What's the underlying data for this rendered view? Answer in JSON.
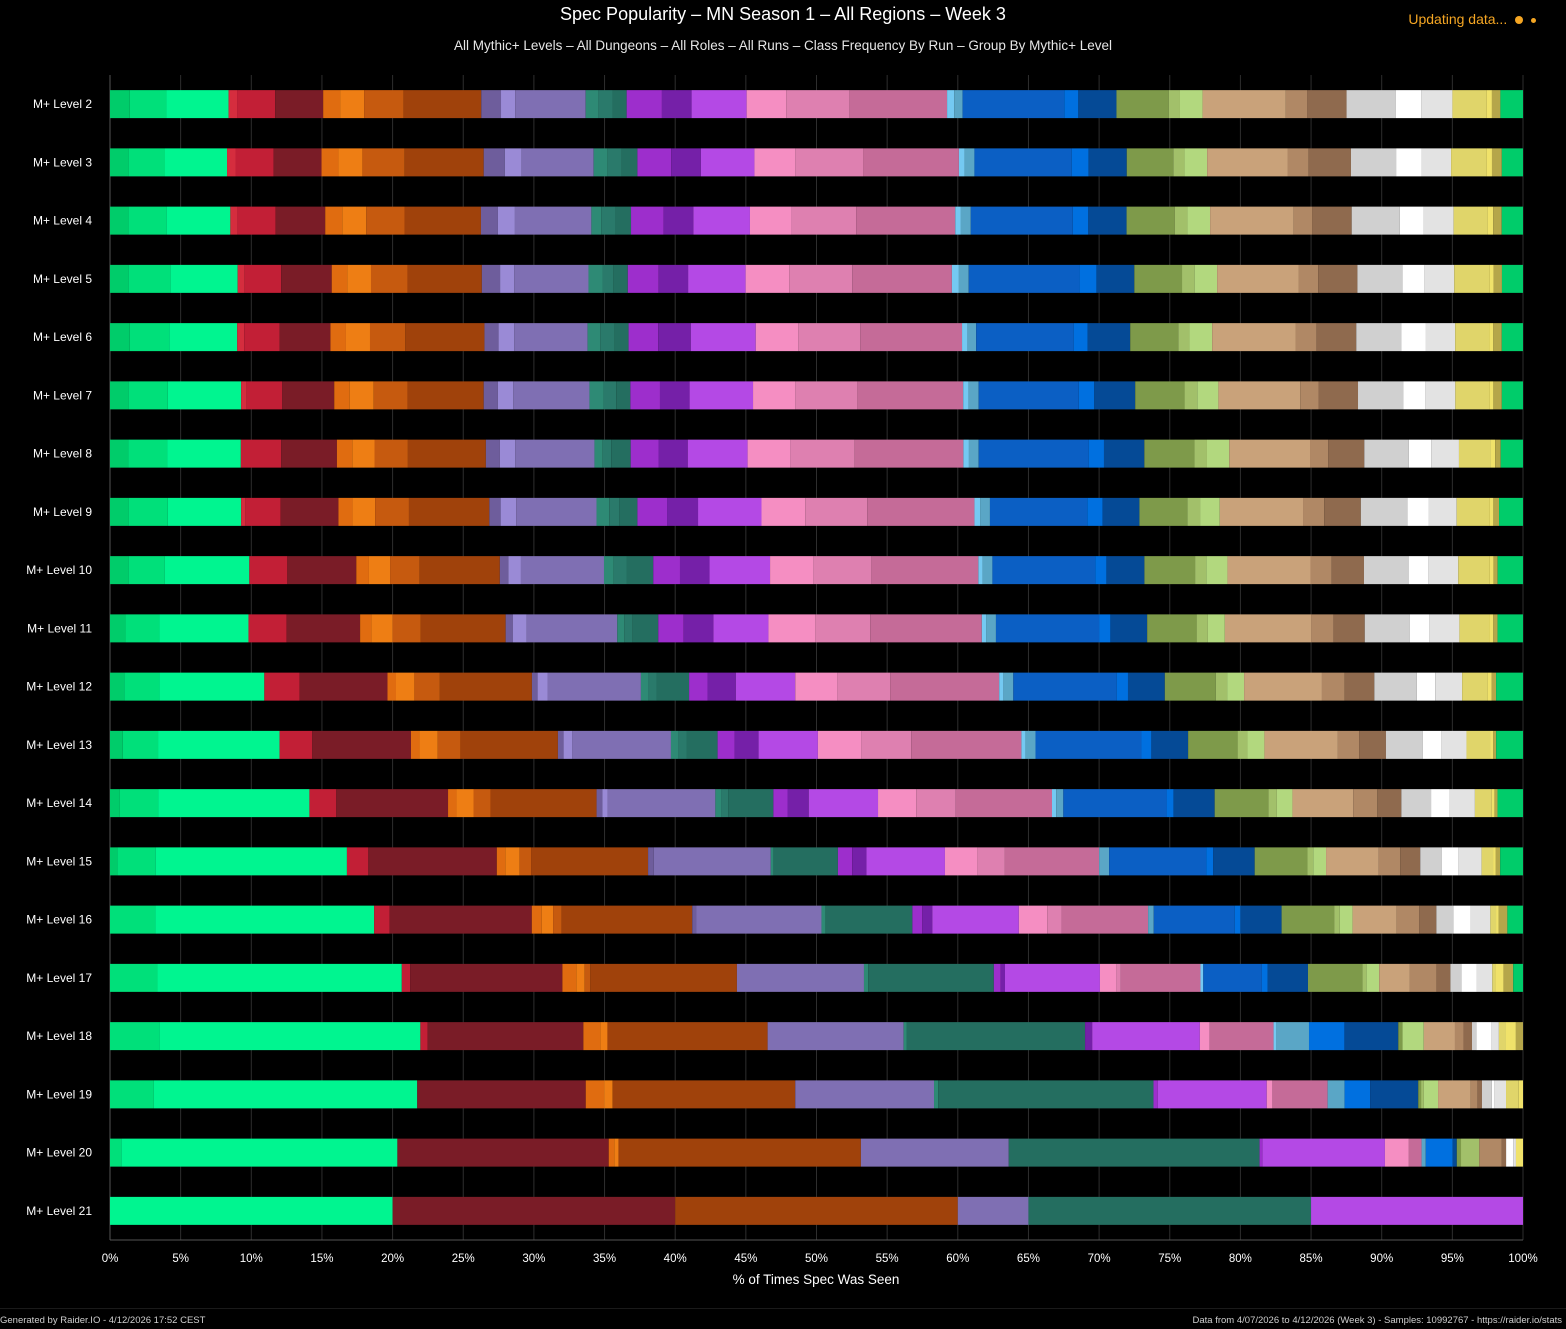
{
  "header": {
    "title": "Spec Popularity – MN Season 1 – All Regions – Week 3",
    "subtitle": "All Mythic+ Levels – All Dungeons – All Roles – All Runs – Class Frequency By Run – Group By Mythic+ Level",
    "status": "Updating data..."
  },
  "footer": {
    "left": "Generated by Raider.IO - 4/12/2026 17:52 CEST",
    "right": "Data from 4/07/2026 to 4/12/2026 (Week 3) - Samples: 10992767 - https://raider.io/stats"
  },
  "colors": {
    "status": "#f5a623",
    "background": "#000000",
    "gridline": "#2e2e2e"
  },
  "chart_data": {
    "type": "bar",
    "orientation": "horizontal",
    "stacked": true,
    "xlabel": "% of Times Spec Was Seen",
    "xlim": [
      0,
      100
    ],
    "xticks": [
      "0%",
      "5%",
      "10%",
      "15%",
      "20%",
      "25%",
      "30%",
      "35%",
      "40%",
      "45%",
      "50%",
      "55%",
      "60%",
      "65%",
      "70%",
      "75%",
      "80%",
      "85%",
      "90%",
      "95%",
      "100%"
    ],
    "grid": true,
    "legend": "none",
    "categories": [
      "M+ Level 2",
      "M+ Level 3",
      "M+ Level 4",
      "M+ Level 5",
      "M+ Level 6",
      "M+ Level 7",
      "M+ Level 8",
      "M+ Level 9",
      "M+ Level 10",
      "M+ Level 11",
      "M+ Level 12",
      "M+ Level 13",
      "M+ Level 14",
      "M+ Level 15",
      "M+ Level 16",
      "M+ Level 17",
      "M+ Level 18",
      "M+ Level 19",
      "M+ Level 20",
      "M+ Level 21"
    ],
    "series_colors": [
      "#00cc6a",
      "#00e07a",
      "#00f590",
      "#d52d3e",
      "#c21f36",
      "#7a1c27",
      "#e06c10",
      "#ee7e14",
      "#c65a0f",
      "#a0420b",
      "#6e5d9c",
      "#9a8ad6",
      "#7f6fb3",
      "#2e8a75",
      "#2a7a6b",
      "#246e60",
      "#9d2ecc",
      "#7520a8",
      "#b449e5",
      "#f58ec2",
      "#de80b0",
      "#c56b98",
      "#74c9f2",
      "#5aa6c6",
      "#0b5fc4",
      "#0070e0",
      "#054a96",
      "#7e9a4a",
      "#a2c06a",
      "#b2d87e",
      "#c9a27a",
      "#b08865",
      "#8f6a4e",
      "#d0d0d0",
      "#ffffff",
      "#e3e3e3",
      "#e0d56a",
      "#f0e26a",
      "#b5a64a"
    ],
    "values": [
      [
        1.4,
        2.6,
        4.4,
        0.6,
        2.7,
        3.4,
        1.2,
        1.7,
        2.8,
        5.5,
        1.4,
        1.0,
        5.0,
        0.9,
        1.0,
        1.0,
        2.5,
        2.1,
        3.9,
        2.8,
        4.5,
        6.9,
        0.5,
        0.6,
        7.2,
        1.0,
        2.7,
        3.7,
        0.8,
        1.6,
        5.9,
        1.5,
        2.8,
        3.5,
        1.8,
        2.2,
        2.4,
        0.4,
        0.6,
        1.6
      ],
      [
        1.3,
        2.6,
        4.4,
        0.6,
        2.7,
        3.4,
        1.2,
        1.7,
        3.0,
        5.6,
        1.5,
        1.2,
        5.1,
        1.0,
        1.0,
        1.1,
        2.4,
        2.1,
        3.8,
        2.9,
        4.8,
        6.8,
        0.4,
        0.7,
        6.9,
        1.2,
        2.7,
        3.3,
        0.8,
        1.6,
        5.7,
        1.5,
        3.0,
        3.2,
        1.8,
        2.1,
        2.5,
        0.4,
        0.7,
        1.5
      ],
      [
        1.3,
        2.7,
        4.5,
        0.5,
        2.7,
        3.5,
        1.2,
        1.7,
        2.7,
        5.4,
        1.2,
        1.2,
        5.4,
        0.7,
        1.0,
        1.1,
        2.3,
        2.1,
        4.0,
        2.9,
        4.6,
        7.0,
        0.4,
        0.7,
        7.2,
        1.1,
        2.7,
        3.4,
        0.9,
        1.6,
        5.9,
        1.3,
        2.8,
        3.4,
        1.7,
        2.1,
        2.4,
        0.4,
        0.6,
        1.5
      ],
      [
        1.3,
        3.0,
        4.8,
        0.5,
        2.6,
        3.6,
        1.1,
        1.7,
        2.6,
        5.3,
        1.3,
        1.0,
        5.3,
        1.0,
        0.8,
        1.0,
        2.2,
        2.1,
        4.1,
        3.1,
        4.5,
        7.1,
        0.5,
        0.7,
        7.9,
        1.2,
        2.7,
        3.4,
        0.9,
        1.6,
        5.8,
        1.4,
        2.8,
        3.2,
        1.6,
        2.1,
        2.5,
        0.3,
        0.6,
        1.5
      ],
      [
        1.4,
        2.8,
        4.8,
        0.5,
        2.5,
        3.6,
        1.1,
        1.7,
        2.5,
        5.6,
        1.0,
        1.1,
        5.2,
        0.9,
        1.0,
        1.0,
        2.1,
        2.3,
        4.6,
        3.0,
        4.4,
        7.2,
        0.4,
        0.6,
        6.9,
        1.0,
        3.0,
        3.4,
        0.8,
        1.6,
        5.9,
        1.5,
        2.8,
        3.2,
        1.7,
        2.1,
        2.4,
        0.3,
        0.6,
        1.5
      ],
      [
        1.3,
        2.8,
        5.2,
        0.4,
        2.5,
        3.7,
        1.1,
        1.7,
        2.4,
        5.4,
        1.0,
        1.1,
        5.4,
        1.0,
        0.9,
        1.0,
        2.1,
        2.1,
        4.5,
        3.0,
        4.4,
        7.5,
        0.4,
        0.7,
        7.1,
        1.1,
        2.9,
        3.5,
        0.9,
        1.5,
        5.8,
        1.3,
        2.8,
        3.2,
        1.6,
        2.1,
        2.4,
        0.3,
        0.6,
        1.5
      ],
      [
        1.3,
        2.8,
        5.3,
        0.0,
        2.9,
        4.0,
        1.1,
        1.6,
        2.4,
        5.6,
        1.0,
        1.1,
        5.7,
        0.6,
        0.6,
        1.4,
        2.0,
        2.1,
        4.3,
        3.1,
        4.6,
        7.8,
        0.4,
        0.7,
        7.9,
        1.1,
        2.9,
        3.6,
        0.9,
        1.6,
        5.8,
        1.3,
        2.6,
        3.2,
        1.6,
        2.0,
        2.3,
        0.3,
        0.4,
        1.6
      ],
      [
        1.3,
        2.8,
        5.2,
        0.3,
        2.5,
        4.1,
        1.0,
        1.6,
        2.4,
        5.7,
        0.8,
        1.1,
        5.7,
        0.9,
        0.7,
        1.3,
        2.1,
        2.2,
        4.5,
        3.1,
        4.4,
        7.6,
        0.4,
        0.7,
        6.9,
        1.1,
        2.6,
        3.4,
        0.9,
        1.4,
        5.9,
        1.5,
        2.6,
        3.3,
        1.5,
        2.0,
        2.3,
        0.3,
        0.4,
        1.7
      ],
      [
        1.3,
        2.6,
        6.0,
        0.0,
        2.7,
        4.9,
        0.9,
        1.5,
        2.1,
        5.7,
        0.6,
        0.9,
        5.9,
        0.7,
        0.9,
        1.9,
        1.9,
        2.1,
        4.3,
        3.1,
        4.1,
        7.6,
        0.3,
        0.7,
        7.3,
        0.8,
        2.7,
        3.6,
        0.8,
        1.5,
        5.9,
        1.5,
        2.3,
        3.2,
        1.4,
        2.1,
        2.2,
        0.3,
        0.3,
        1.8
      ],
      [
        1.1,
        2.4,
        6.3,
        0.0,
        2.7,
        5.2,
        0.8,
        1.5,
        2.0,
        6.0,
        0.5,
        1.0,
        6.4,
        0.5,
        0.6,
        1.8,
        1.8,
        2.1,
        3.9,
        3.3,
        3.9,
        7.9,
        0.3,
        0.7,
        7.3,
        0.8,
        2.6,
        3.5,
        0.8,
        1.2,
        6.1,
        1.6,
        2.2,
        3.2,
        1.4,
        2.1,
        2.1,
        0.3,
        0.3,
        1.8
      ],
      [
        1.0,
        2.5,
        7.4,
        0.0,
        2.5,
        6.2,
        0.6,
        1.3,
        1.8,
        6.5,
        0.4,
        0.7,
        6.6,
        0.5,
        0.6,
        2.3,
        1.3,
        2.0,
        4.2,
        3.0,
        3.7,
        7.7,
        0.3,
        0.7,
        7.3,
        0.8,
        2.6,
        3.6,
        0.8,
        1.2,
        5.5,
        1.6,
        2.1,
        3.0,
        1.3,
        1.9,
        1.8,
        0.3,
        0.3,
        1.9
      ],
      [
        0.9,
        2.5,
        8.6,
        0.0,
        2.3,
        7.0,
        0.6,
        1.3,
        1.6,
        6.9,
        0.4,
        0.6,
        7.0,
        0.5,
        0.6,
        2.2,
        1.2,
        1.7,
        4.2,
        3.1,
        3.5,
        7.8,
        0.3,
        0.7,
        7.5,
        0.7,
        2.6,
        3.5,
        0.7,
        1.2,
        5.2,
        1.5,
        1.9,
        2.6,
        1.3,
        1.8,
        1.7,
        0.2,
        0.2,
        1.9
      ],
      [
        0.7,
        2.7,
        10.7,
        0.0,
        1.9,
        7.9,
        0.6,
        1.2,
        1.2,
        7.5,
        0.4,
        0.4,
        7.6,
        0.4,
        0.5,
        3.2,
        1.0,
        1.5,
        4.9,
        2.7,
        2.8,
        6.8,
        0.3,
        0.5,
        7.3,
        0.5,
        2.9,
        3.8,
        0.6,
        1.1,
        4.3,
        1.7,
        1.7,
        2.1,
        1.3,
        1.8,
        1.2,
        0.2,
        0.2,
        1.8
      ],
      [
        0.5,
        2.7,
        13.4,
        0.0,
        1.5,
        9.0,
        0.6,
        1.0,
        0.8,
        8.2,
        0.4,
        0.0,
        8.2,
        0.2,
        0.0,
        4.5,
        1.0,
        1.0,
        5.5,
        2.3,
        1.9,
        6.6,
        0.0,
        0.7,
        6.8,
        0.5,
        2.9,
        3.7,
        0.4,
        0.9,
        3.7,
        1.5,
        1.4,
        1.5,
        1.2,
        1.6,
        0.8,
        0.2,
        0.3,
        1.6
      ],
      [
        0.0,
        3.2,
        15.4,
        0.0,
        1.1,
        10.0,
        0.7,
        0.8,
        0.6,
        9.2,
        0.3,
        0.0,
        8.8,
        0.3,
        0.0,
        6.1,
        0.7,
        0.7,
        6.1,
        2.0,
        1.0,
        6.1,
        0.0,
        0.4,
        5.7,
        0.4,
        2.9,
        3.7,
        0.4,
        0.9,
        3.1,
        1.6,
        1.2,
        1.2,
        1.2,
        1.4,
        0.4,
        0.2,
        0.6,
        1.1
      ],
      [
        0.0,
        3.4,
        17.5,
        0.0,
        0.6,
        10.9,
        1.0,
        0.6,
        0.4,
        10.5,
        0.0,
        0.0,
        9.1,
        0.3,
        0.0,
        9.0,
        0.5,
        0.3,
        6.8,
        1.2,
        0.3,
        5.7,
        0.2,
        0.0,
        4.2,
        0.4,
        2.9,
        3.9,
        0.3,
        0.9,
        2.2,
        1.9,
        1.0,
        0.8,
        1.1,
        1.1,
        0.2,
        0.6,
        0.7,
        0.7
      ],
      [
        0.0,
        3.5,
        18.4,
        0.0,
        0.5,
        11.0,
        1.2,
        0.5,
        0.0,
        11.3,
        0.0,
        0.0,
        9.6,
        0.2,
        0.0,
        12.6,
        0.0,
        0.5,
        7.6,
        0.7,
        0.0,
        4.5,
        0.2,
        2.3,
        0.0,
        2.5,
        3.8,
        0.3,
        0.0,
        1.5,
        2.2,
        0.6,
        0.6,
        0.3,
        1.1,
        0.5,
        0.5,
        0.7,
        0.5
      ],
      [
        0.0,
        3.1,
        18.6,
        0.0,
        0.0,
        11.9,
        1.3,
        0.6,
        0.0,
        12.9,
        0.0,
        0.0,
        9.8,
        0.3,
        0.0,
        15.2,
        0.3,
        0.0,
        7.7,
        0.4,
        0.0,
        3.9,
        0.0,
        1.2,
        0.0,
        1.8,
        3.4,
        0.2,
        0.2,
        1.0,
        2.3,
        0.5,
        0.3,
        0.7,
        0.2,
        0.8,
        0.9,
        0.3
      ],
      [
        0.0,
        0.8,
        19.6,
        0.0,
        0.0,
        15.0,
        0.4,
        0.3,
        0.0,
        17.2,
        0.0,
        0.0,
        10.5,
        0.0,
        0.0,
        17.8,
        0.2,
        0.0,
        8.7,
        1.7,
        0.0,
        0.9,
        0.0,
        0.3,
        0.0,
        1.9,
        0.3,
        0.3,
        1.3,
        0.0,
        0.0,
        1.6,
        0.3,
        0.0,
        0.5,
        0.2,
        0.0,
        0.5
      ],
      [
        0.0,
        0.0,
        20.0,
        0.0,
        0.0,
        20.0,
        0.0,
        0.0,
        0.0,
        20.0,
        0.0,
        0.0,
        5.0,
        0.0,
        0.0,
        20.0,
        0.0,
        0.0,
        15.0
      ]
    ]
  }
}
